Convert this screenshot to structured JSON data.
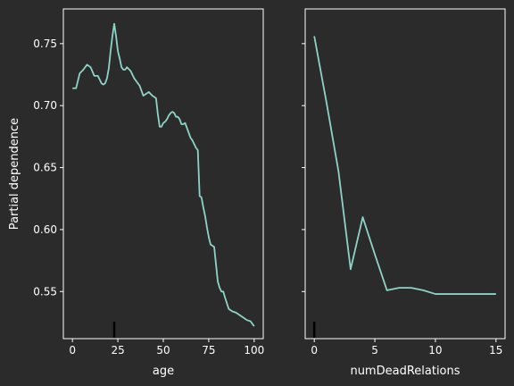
{
  "colors": {
    "background": "#2b2b2b",
    "axes": "#ffffff",
    "line": "#8dd3c7",
    "rug": "#000000"
  },
  "chart_data": [
    {
      "type": "line",
      "xlabel": "age",
      "ylabel": "Partial dependence",
      "xlim": [
        -5,
        105
      ],
      "ylim": [
        0.512,
        0.778
      ],
      "xticks": [
        0,
        25,
        50,
        75,
        100
      ],
      "xtick_labels": [
        "0",
        "25",
        "50",
        "75",
        "100"
      ],
      "yticks": [
        0.55,
        0.6,
        0.65,
        0.7,
        0.75
      ],
      "ytick_labels": [
        "0.55",
        "0.60",
        "0.65",
        "0.70",
        "0.75"
      ],
      "grid": false,
      "rug_x": [
        23
      ],
      "series": [
        {
          "x": [
            0,
            2,
            4,
            6,
            8,
            10,
            12,
            14,
            16,
            17,
            18,
            19,
            20,
            21,
            22,
            23,
            24,
            25,
            26,
            27,
            28,
            29,
            30,
            32,
            34,
            36,
            37,
            38,
            39,
            40,
            42,
            44,
            46,
            47,
            48,
            49,
            50,
            51,
            52,
            53,
            54,
            55,
            56,
            57,
            58,
            59,
            60,
            61,
            62,
            63,
            64,
            65,
            66,
            67,
            68,
            69,
            70,
            71,
            72,
            73,
            74,
            75,
            76,
            77,
            78,
            79,
            80,
            81,
            82,
            83,
            84,
            86,
            88,
            90,
            92,
            94,
            96,
            98,
            100
          ],
          "y": [
            0.714,
            0.714,
            0.726,
            0.729,
            0.733,
            0.731,
            0.724,
            0.724,
            0.718,
            0.717,
            0.718,
            0.722,
            0.73,
            0.744,
            0.756,
            0.766,
            0.756,
            0.744,
            0.738,
            0.731,
            0.729,
            0.729,
            0.731,
            0.728,
            0.722,
            0.718,
            0.716,
            0.712,
            0.708,
            0.709,
            0.711,
            0.708,
            0.706,
            0.693,
            0.683,
            0.683,
            0.686,
            0.687,
            0.689,
            0.692,
            0.694,
            0.695,
            0.694,
            0.691,
            0.691,
            0.689,
            0.685,
            0.685,
            0.686,
            0.682,
            0.678,
            0.674,
            0.672,
            0.669,
            0.666,
            0.664,
            0.627,
            0.626,
            0.618,
            0.611,
            0.602,
            0.594,
            0.588,
            0.587,
            0.586,
            0.572,
            0.558,
            0.553,
            0.55,
            0.55,
            0.545,
            0.536,
            0.534,
            0.533,
            0.531,
            0.529,
            0.527,
            0.526,
            0.522
          ]
        }
      ]
    },
    {
      "type": "line",
      "xlabel": "numDeadRelations",
      "ylabel": "",
      "xlim": [
        -0.75,
        15.75
      ],
      "ylim": [
        0.512,
        0.778
      ],
      "xticks": [
        0,
        5,
        10,
        15
      ],
      "xtick_labels": [
        "0",
        "5",
        "10",
        "15"
      ],
      "yticks": [
        0.55,
        0.6,
        0.65,
        0.7,
        0.75
      ],
      "ytick_labels": [],
      "grid": false,
      "rug_x": [
        0
      ],
      "series": [
        {
          "x": [
            0,
            1,
            2,
            3,
            4,
            5,
            6,
            7,
            8,
            9,
            10,
            11,
            12,
            13,
            14,
            15
          ],
          "y": [
            0.756,
            0.703,
            0.647,
            0.568,
            0.61,
            0.58,
            0.551,
            0.553,
            0.553,
            0.551,
            0.548,
            0.548,
            0.548,
            0.548,
            0.548,
            0.548
          ]
        }
      ]
    }
  ]
}
